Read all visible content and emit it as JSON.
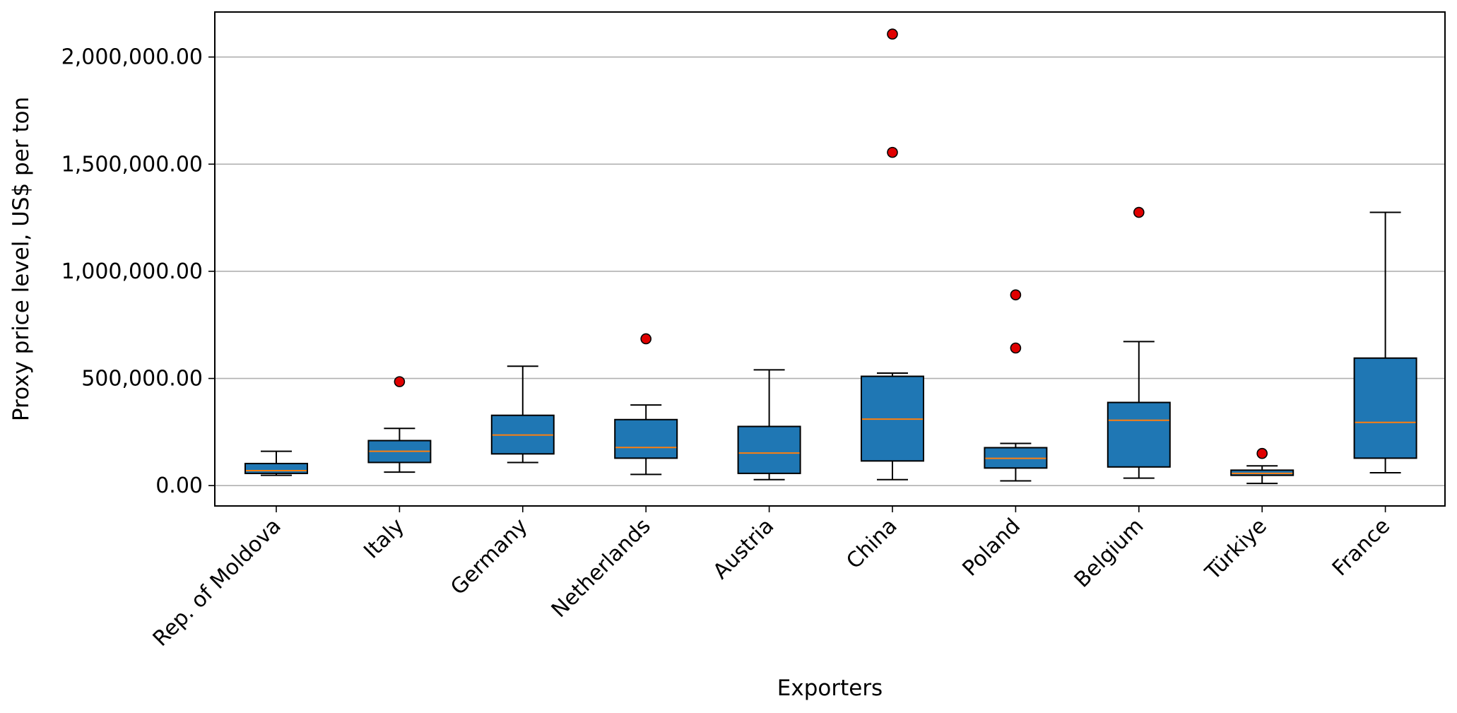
{
  "chart_data": {
    "type": "box",
    "title": "",
    "xlabel": "Exporters",
    "ylabel": "Proxy price level, US$ per ton",
    "ylim": [
      -95000,
      2210000
    ],
    "yticks": [
      0,
      500000,
      1000000,
      1500000,
      2000000
    ],
    "ytick_labels": [
      "0.00",
      "500,000.00",
      "1,000,000.00",
      "1,500,000.00",
      "2,000,000.00"
    ],
    "grid": "horizontal",
    "colors": {
      "box_fill": "#1f77b4",
      "median": "#ff7f0e",
      "outlier": "#e00000",
      "grid": "#b0b0b0"
    },
    "categories": [
      "Rep. of Moldova",
      "Italy",
      "Germany",
      "Netherlands",
      "Austria",
      "China",
      "Poland",
      "Belgium",
      "Türkiye",
      "France"
    ],
    "boxes": [
      {
        "whisker_low": 48000,
        "q1": 57000,
        "median": 70000,
        "q3": 103000,
        "whisker_high": 160000,
        "outliers": []
      },
      {
        "whisker_low": 63000,
        "q1": 108000,
        "median": 160000,
        "q3": 210000,
        "whisker_high": 267000,
        "outliers": [
          485000
        ]
      },
      {
        "whisker_low": 108000,
        "q1": 148000,
        "median": 236000,
        "q3": 328000,
        "whisker_high": 557000,
        "outliers": []
      },
      {
        "whisker_low": 52000,
        "q1": 128000,
        "median": 178000,
        "q3": 308000,
        "whisker_high": 376000,
        "outliers": [
          685000
        ]
      },
      {
        "whisker_low": 28000,
        "q1": 57000,
        "median": 152000,
        "q3": 276000,
        "whisker_high": 540000,
        "outliers": []
      },
      {
        "whisker_low": 28000,
        "q1": 115000,
        "median": 310000,
        "q3": 510000,
        "whisker_high": 525000,
        "outliers": [
          1555000,
          2107000
        ]
      },
      {
        "whisker_low": 22000,
        "q1": 82000,
        "median": 127000,
        "q3": 177000,
        "whisker_high": 197000,
        "outliers": [
          642000,
          890000
        ]
      },
      {
        "whisker_low": 35000,
        "q1": 87000,
        "median": 305000,
        "q3": 388000,
        "whisker_high": 672000,
        "outliers": [
          1275000
        ]
      },
      {
        "whisker_low": 10000,
        "q1": 48000,
        "median": 57000,
        "q3": 72000,
        "whisker_high": 92000,
        "outliers": [
          150000
        ]
      },
      {
        "whisker_low": 60000,
        "q1": 128000,
        "median": 295000,
        "q3": 595000,
        "whisker_high": 1275000,
        "outliers": []
      }
    ]
  }
}
